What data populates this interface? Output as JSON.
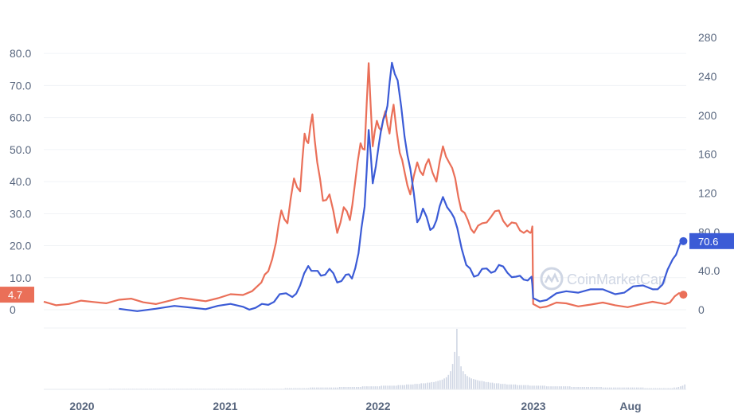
{
  "watermark": "CoinMarketCap",
  "chart_data": {
    "type": "line",
    "x_labels": [
      "2020",
      "2021",
      "2022",
      "2023",
      "Aug"
    ],
    "left_axis": {
      "ticks": [
        "0",
        "10.0",
        "20.0",
        "30.0",
        "40.0",
        "50.0",
        "60.0",
        "70.0",
        "80.0"
      ],
      "ylim": [
        0,
        88
      ]
    },
    "right_axis": {
      "ticks": [
        "0",
        "40.0",
        "80.0",
        "120",
        "160",
        "200",
        "240",
        "280"
      ],
      "ylim": [
        0,
        290
      ]
    },
    "grid": true,
    "series": [
      {
        "axis": "left",
        "color": "#ea6f58",
        "last_value_label": "4.7",
        "points": [
          [
            "2019-08-01",
            2.5
          ],
          [
            "2019-10-01",
            1.8
          ],
          [
            "2019-12-01",
            2.4
          ],
          [
            "2020-02-01",
            3.1
          ],
          [
            "2020-04-01",
            2.3
          ],
          [
            "2020-06-01",
            2.7
          ],
          [
            "2020-08-01",
            3.2
          ],
          [
            "2020-10-01",
            3.6
          ],
          [
            "2020-12-01",
            4.6
          ],
          [
            "2021-01-15",
            8.5
          ],
          [
            "2021-02-01",
            12.0
          ],
          [
            "2021-02-20",
            21.0
          ],
          [
            "2021-03-05",
            31.0
          ],
          [
            "2021-03-20",
            27.0
          ],
          [
            "2021-04-05",
            41.0
          ],
          [
            "2021-04-20",
            37.0
          ],
          [
            "2021-05-01",
            55.0
          ],
          [
            "2021-05-10",
            52.0
          ],
          [
            "2021-05-20",
            61.0
          ],
          [
            "2021-06-01",
            46.0
          ],
          [
            "2021-06-15",
            34.0
          ],
          [
            "2021-07-01",
            36.0
          ],
          [
            "2021-07-20",
            24.0
          ],
          [
            "2021-08-05",
            32.0
          ],
          [
            "2021-08-20",
            28.0
          ],
          [
            "2021-09-01",
            39.0
          ],
          [
            "2021-09-15",
            52.0
          ],
          [
            "2021-09-25",
            50.0
          ],
          [
            "2021-10-05",
            77.0
          ],
          [
            "2021-10-15",
            51.0
          ],
          [
            "2021-10-25",
            59.0
          ],
          [
            "2021-11-05",
            56.0
          ],
          [
            "2021-11-15",
            62.0
          ],
          [
            "2021-11-25",
            55.0
          ],
          [
            "2021-12-05",
            64.0
          ],
          [
            "2021-12-20",
            49.0
          ],
          [
            "2022-01-01",
            43.0
          ],
          [
            "2022-01-15",
            36.0
          ],
          [
            "2022-02-01",
            46.0
          ],
          [
            "2022-02-15",
            42.0
          ],
          [
            "2022-03-01",
            47.0
          ],
          [
            "2022-03-20",
            40.0
          ],
          [
            "2022-04-05",
            51.0
          ],
          [
            "2022-04-20",
            46.0
          ],
          [
            "2022-05-05",
            41.0
          ],
          [
            "2022-05-20",
            31.0
          ],
          [
            "2022-06-05",
            28.0
          ],
          [
            "2022-06-20",
            24.0
          ],
          [
            "2022-07-10",
            27.0
          ],
          [
            "2022-08-01",
            29.0
          ],
          [
            "2022-08-20",
            31.0
          ],
          [
            "2022-09-10",
            26.0
          ],
          [
            "2022-10-01",
            27.0
          ],
          [
            "2022-10-20",
            24.0
          ],
          [
            "2022-11-05",
            24.0
          ],
          [
            "2022-11-10",
            26.0
          ],
          [
            "2022-11-12",
            1.8
          ],
          [
            "2022-12-15",
            1.0
          ],
          [
            "2023-02-01",
            2.0
          ],
          [
            "2023-04-01",
            1.6
          ],
          [
            "2023-06-01",
            1.4
          ],
          [
            "2023-08-01",
            1.7
          ],
          [
            "2023-10-01",
            1.8
          ],
          [
            "2023-10-25",
            4.2
          ],
          [
            "2023-11-15",
            4.7
          ]
        ]
      },
      {
        "axis": "right",
        "color": "#3b5bd6",
        "last_value_label": "70.6",
        "points": [
          [
            "2020-02-01",
            1
          ],
          [
            "2020-05-01",
            1
          ],
          [
            "2020-08-01",
            2
          ],
          [
            "2020-10-01",
            4
          ],
          [
            "2020-12-01",
            3
          ],
          [
            "2021-01-01",
            2
          ],
          [
            "2021-02-01",
            5
          ],
          [
            "2021-03-01",
            16
          ],
          [
            "2021-04-01",
            13
          ],
          [
            "2021-04-20",
            25
          ],
          [
            "2021-05-10",
            45
          ],
          [
            "2021-05-25",
            40
          ],
          [
            "2021-06-10",
            35
          ],
          [
            "2021-07-01",
            42
          ],
          [
            "2021-07-20",
            28
          ],
          [
            "2021-08-10",
            36
          ],
          [
            "2021-08-25",
            32
          ],
          [
            "2021-09-10",
            58
          ],
          [
            "2021-09-25",
            106
          ],
          [
            "2021-10-05",
            185
          ],
          [
            "2021-10-15",
            130
          ],
          [
            "2021-10-30",
            170
          ],
          [
            "2021-11-10",
            196
          ],
          [
            "2021-11-20",
            210
          ],
          [
            "2021-12-01",
            254
          ],
          [
            "2021-12-15",
            236
          ],
          [
            "2022-01-01",
            178
          ],
          [
            "2022-01-15",
            145
          ],
          [
            "2022-02-01",
            90
          ],
          [
            "2022-02-15",
            104
          ],
          [
            "2022-03-05",
            82
          ],
          [
            "2022-03-20",
            92
          ],
          [
            "2022-04-05",
            116
          ],
          [
            "2022-04-25",
            100
          ],
          [
            "2022-05-10",
            84
          ],
          [
            "2022-06-01",
            46
          ],
          [
            "2022-06-20",
            34
          ],
          [
            "2022-07-10",
            42
          ],
          [
            "2022-08-01",
            38
          ],
          [
            "2022-08-20",
            46
          ],
          [
            "2022-09-10",
            38
          ],
          [
            "2022-10-01",
            34
          ],
          [
            "2022-10-20",
            31
          ],
          [
            "2022-11-08",
            34
          ],
          [
            "2022-11-12",
            12
          ],
          [
            "2022-12-15",
            10
          ],
          [
            "2023-02-01",
            19
          ],
          [
            "2023-04-01",
            21
          ],
          [
            "2023-06-01",
            16
          ],
          [
            "2023-07-15",
            24
          ],
          [
            "2023-09-01",
            21
          ],
          [
            "2023-09-25",
            26
          ],
          [
            "2023-10-20",
            52
          ],
          [
            "2023-11-05",
            66
          ],
          [
            "2023-11-15",
            70.6
          ]
        ]
      }
    ],
    "volume": [
      0.01,
      0.01,
      0.01,
      0.01,
      0.01,
      0.01,
      0.01,
      0.01,
      0.01,
      0.01,
      0.01,
      0.01,
      0.01,
      0.01,
      0.01,
      0.01,
      0.01,
      0.01,
      0.01,
      0.01,
      0.01,
      0.01,
      0.01,
      0.01,
      0.01,
      0.01,
      0.01,
      0.01,
      0.01,
      0.01,
      0.01,
      0.01,
      0.01,
      0.01,
      0.01,
      0.01,
      0.01,
      0.01,
      0.01,
      0.01,
      0.01,
      0.01,
      0.01,
      0.01,
      0.01,
      0.01,
      0.01,
      0.01,
      0.01,
      0.01,
      0.01,
      0.01,
      0.01,
      0.01,
      0.01,
      0.01,
      0.01,
      0.01,
      0.01,
      0.01,
      0.01,
      0.01,
      0.01,
      0.01,
      0.01,
      0.01,
      0.01,
      0.01,
      0.01,
      0.01,
      0.01,
      0.01,
      0.01,
      0.01,
      0.01,
      0.01,
      0.01,
      0.01,
      0.01,
      0.01,
      0.01,
      0.01,
      0.01,
      0.01,
      0.02,
      0.02,
      0.02,
      0.02,
      0.02,
      0.02,
      0.02,
      0.02,
      0.02,
      0.02,
      0.02,
      0.02,
      0.03,
      0.03,
      0.03,
      0.03,
      0.03,
      0.03,
      0.03,
      0.03,
      0.03,
      0.03,
      0.03,
      0.03,
      0.03,
      0.03,
      0.04,
      0.04,
      0.04,
      0.04,
      0.04,
      0.04,
      0.04,
      0.04,
      0.04,
      0.04,
      0.04,
      0.05,
      0.05,
      0.05,
      0.05,
      0.05,
      0.05,
      0.05,
      0.05,
      0.05,
      0.06,
      0.06,
      0.06,
      0.06,
      0.06,
      0.06,
      0.06,
      0.06,
      0.07,
      0.07,
      0.07,
      0.07,
      0.08,
      0.08,
      0.08,
      0.08,
      0.09,
      0.09,
      0.09,
      0.1,
      0.1,
      0.1,
      0.11,
      0.11,
      0.12,
      0.12,
      0.13,
      0.14,
      0.15,
      0.16,
      0.18,
      0.2,
      0.24,
      0.3,
      0.42,
      0.62,
      1.0,
      0.55,
      0.38,
      0.3,
      0.25,
      0.22,
      0.2,
      0.18,
      0.17,
      0.16,
      0.15,
      0.14,
      0.14,
      0.13,
      0.12,
      0.12,
      0.11,
      0.11,
      0.1,
      0.1,
      0.1,
      0.09,
      0.09,
      0.09,
      0.08,
      0.08,
      0.08,
      0.08,
      0.08,
      0.07,
      0.07,
      0.07,
      0.07,
      0.07,
      0.07,
      0.06,
      0.06,
      0.06,
      0.06,
      0.06,
      0.06,
      0.06,
      0.06,
      0.05,
      0.05,
      0.05,
      0.05,
      0.05,
      0.05,
      0.05,
      0.05,
      0.05,
      0.05,
      0.05,
      0.05,
      0.04,
      0.04,
      0.04,
      0.04,
      0.04,
      0.04,
      0.04,
      0.04,
      0.04,
      0.04,
      0.04,
      0.04,
      0.04,
      0.04,
      0.04,
      0.03,
      0.03,
      0.03,
      0.03,
      0.03,
      0.03,
      0.03,
      0.03,
      0.03,
      0.03,
      0.03,
      0.03,
      0.03,
      0.03,
      0.03,
      0.03,
      0.03,
      0.03,
      0.03,
      0.03,
      0.02,
      0.02,
      0.02,
      0.02,
      0.02,
      0.02,
      0.02,
      0.02,
      0.02,
      0.02,
      0.02,
      0.02,
      0.02,
      0.02,
      0.03,
      0.03,
      0.04,
      0.05,
      0.06,
      0.08
    ]
  }
}
